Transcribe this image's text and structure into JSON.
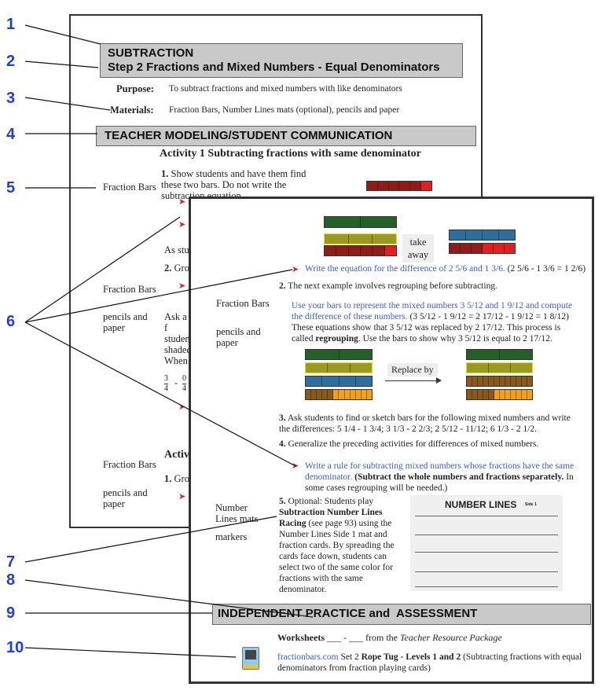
{
  "back_page": {
    "title": "SUBTRACTION",
    "subtitle": "Step 2 Fractions and Mixed Numbers - Equal Denominators",
    "purpose_label": "Purpose:",
    "purpose_text": "To subtract fractions and mixed numbers with like denominators",
    "materials_label": "Materials:",
    "materials_text": "Fraction Bars,  Number Lines mats (optional), pencils and paper",
    "section_title": "TEACHER MODELING/STUDENT COMMUNICATION",
    "activity1_title": "Activity 1  Subtracting fractions with same denominator",
    "side_fraction_bars": "Fraction Bars",
    "side_pencils": "pencils and paper",
    "step1_num": "1.",
    "step1_text": " Show students and have them find these two bars. Do not write the subtraction equation.",
    "as_stud": "As stud",
    "step2_partial": "Grou",
    "step2_num": "2.",
    "ask_text": "Ask a f students shaded When a is, 1/3 a importa",
    "frac_a_num": "3",
    "frac_a_den": "4",
    "minus": "-",
    "frac_b_num": "0",
    "frac_b_den": "4",
    "activity2_partial": "Activi",
    "act2_step1_num": "1.",
    "act2_step1_partial": "Grou"
  },
  "front_page": {
    "take_away": "take away",
    "write_equation": "Write the equation for the difference of 2 5/6 and 1 3/6.",
    "write_equation_answer": " (2 5/6 - 1 3/6 = 1 2/6)",
    "step2_num": "2.",
    "step2_text": " The next example involves regrouping before subtracting.",
    "side_fraction_bars": "Fraction Bars",
    "side_pencils": "pencils and paper",
    "regroup_blue": "Use your bars to represent the mixed numbers 3 5/12 and 1 9/12 and compute the difference of these numbers.",
    "regroup_black": " (3 5/12 - 1 9/12 = 2 17/12 - 1 9/12 = 1 8/12) These equations show that 3 5/12 was replaced by 2 17/12. This process is called ",
    "regroup_bold": "regrouping",
    "regroup_end": ". Use the bars to show why 3 5/12 is equal to 2 17/12.",
    "replace_by": "Replace by",
    "step3_num": "3.",
    "step3_text": " Ask students to find or sketch bars for the following mixed numbers and write the differences: 5 1/4 - 1 3/4;  3 1/3 - 2 2/3;  2 5/12 - 11/12;  6 1/3 - 2 1/2.",
    "step4_num": "4.",
    "step4_text": " Generalize the preceding activities for differences of mixed numbers.",
    "rule_blue": "Write a rule for subtracting mixed numbers whose fractions have the same denominator.",
    "rule_bold": " (Subtract the whole numbers and fractions separately.",
    "rule_end": " In some cases regrouping will be needed.)",
    "side_number_lines": "Number Lines mats",
    "side_markers": "markers",
    "step5_num": "5.",
    "step5_a": " Optional: Students play ",
    "step5_bold": "Subtraction Number Lines Racing",
    "step5_b": " (see page 93) using the Number Lines Side 1 mat and fraction cards. By spreading the cards face down, students can select two of the same color for fractions with the same denominator.",
    "number_lines_title": "NUMBER LINES",
    "number_lines_side": "Side 1",
    "independent_title": "INDEPENDENT PRACTICE and  ASSESSMENT",
    "worksheets_bold": "Worksheets",
    "worksheets_text": " ___ - ___ from the ",
    "worksheets_italic": "Teacher Resource Package",
    "site_link": "fractionbars.com",
    "set_text": " Set 2  ",
    "rope_bold": "Rope Tug - Levels 1 and 2",
    "rope_text": " (Subtracting fractions with equal denominators from fraction playing cards)",
    "computer_icon": "computer-icon"
  },
  "fraction_bars": {
    "top_left": [
      {
        "parts": 2,
        "shaded": 2,
        "color": "#2e7d32",
        "shade": "#245f27"
      },
      {
        "parts": 3,
        "shaded": 3,
        "color": "#e8e020",
        "shade": "#9a9a22"
      },
      {
        "parts": 6,
        "shaded": 5,
        "color": "#e02020",
        "shade": "#8f1b1b"
      }
    ],
    "top_right": [
      {
        "parts": 4,
        "shaded": 4,
        "color": "#3a8fd0",
        "shade": "#2f6f9f"
      },
      {
        "parts": 6,
        "shaded": 3,
        "color": "#e02020",
        "shade": "#8f1b1b"
      }
    ],
    "regroup_left": [
      {
        "parts": 2,
        "shaded": 2,
        "color": "#2e7d32",
        "shade": "#245f27"
      },
      {
        "parts": 3,
        "shaded": 3,
        "color": "#e8e020",
        "shade": "#9a9a22"
      },
      {
        "parts": 4,
        "shaded": 4,
        "color": "#3a8fd0",
        "shade": "#2f6f9f"
      },
      {
        "parts": 12,
        "shaded": 5,
        "color": "#f0a020",
        "shade": "#8a5a1a"
      }
    ],
    "regroup_right": [
      {
        "parts": 2,
        "shaded": 2,
        "color": "#2e7d32",
        "shade": "#245f27"
      },
      {
        "parts": 3,
        "shaded": 3,
        "color": "#e8e020",
        "shade": "#9a9a22"
      },
      {
        "parts": 12,
        "shaded": 12,
        "color": "#f0a020",
        "shade": "#8a5a1a"
      },
      {
        "parts": 12,
        "shaded": 5,
        "color": "#f0a020",
        "shade": "#8a5a1a"
      }
    ],
    "step1_bar": {
      "parts": 6,
      "shaded": 5,
      "color": "#e02020",
      "shade": "#8f1b1b"
    }
  },
  "callouts": [
    "1",
    "2",
    "3",
    "4",
    "5",
    "6",
    "7",
    "8",
    "9",
    "10"
  ],
  "colors": {
    "callout": "#1f3ee0",
    "blue_text": "#3a5fcc",
    "arrow": "#e02020",
    "banner": "#c9c9c9"
  }
}
